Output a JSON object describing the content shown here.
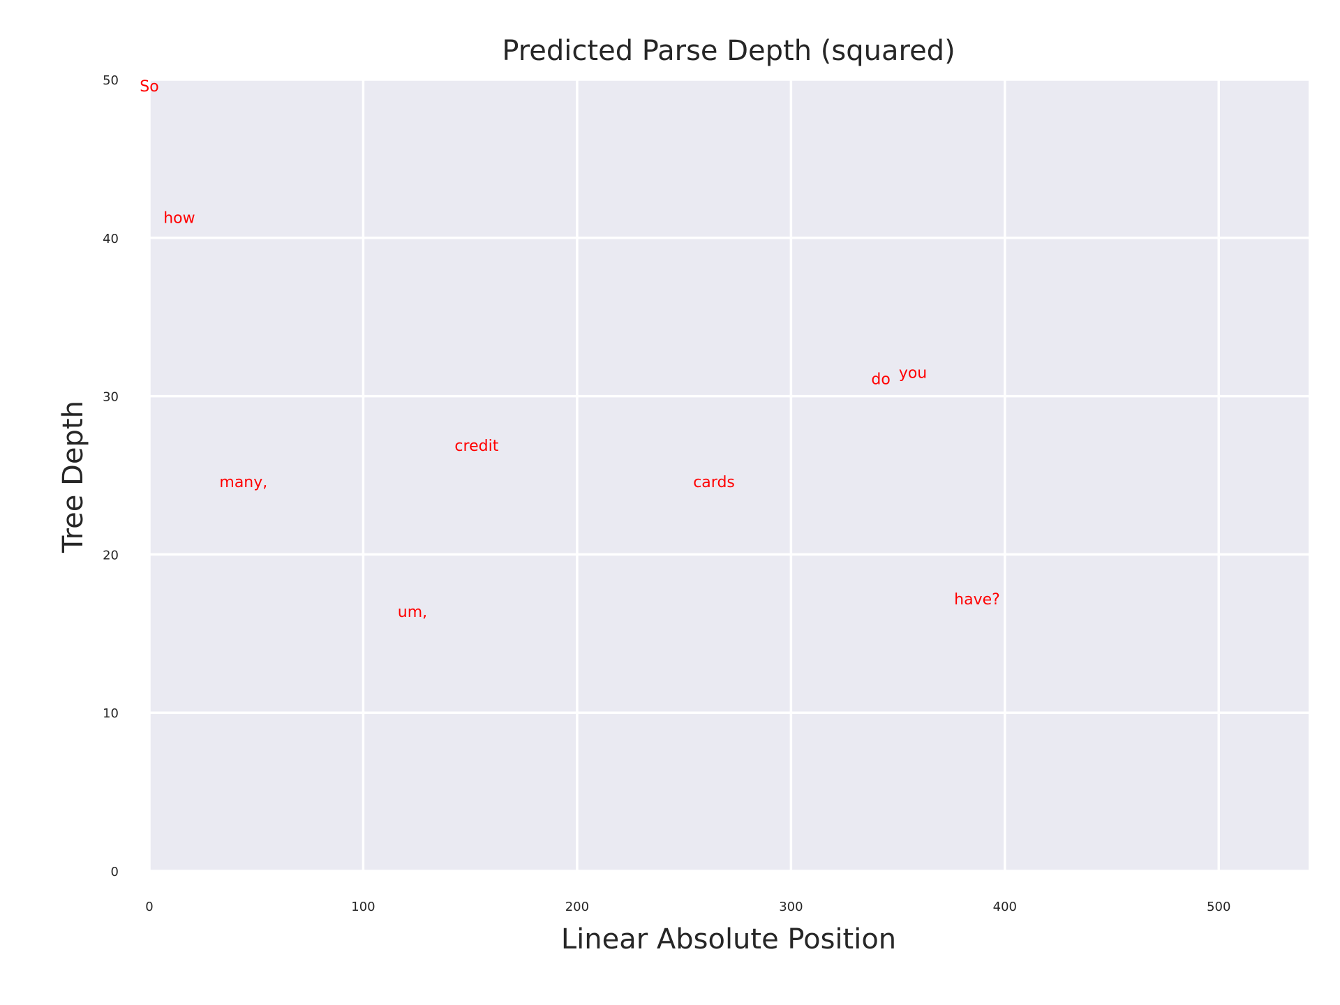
{
  "chart_data": {
    "type": "scatter",
    "title": "Predicted Parse Depth (squared)",
    "xlabel": "Linear Absolute Position",
    "ylabel": "Tree Depth",
    "xlim": [
      0,
      542
    ],
    "ylim": [
      0,
      50
    ],
    "xticks": [
      0,
      100,
      200,
      300,
      400,
      500
    ],
    "yticks": [
      0,
      10,
      20,
      30,
      40,
      50
    ],
    "grid": true,
    "plot_background": "#EAEAF2",
    "grid_color": "#FFFFFF",
    "label_color": "#FF0000",
    "points": [
      {
        "label": "So",
        "x": 0,
        "y": 49.6
      },
      {
        "label": "how",
        "x": 14,
        "y": 41.3
      },
      {
        "label": "many,",
        "x": 44,
        "y": 24.6
      },
      {
        "label": "um,",
        "x": 123,
        "y": 16.4
      },
      {
        "label": "credit",
        "x": 153,
        "y": 26.9
      },
      {
        "label": "cards",
        "x": 264,
        "y": 24.6
      },
      {
        "label": "do",
        "x": 342,
        "y": 31.1
      },
      {
        "label": "you",
        "x": 357,
        "y": 31.5
      },
      {
        "label": "have?",
        "x": 387,
        "y": 17.2
      }
    ]
  }
}
